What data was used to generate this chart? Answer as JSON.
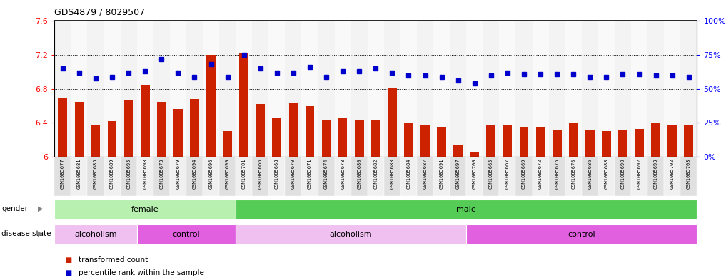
{
  "title": "GDS4879 / 8029507",
  "samples": [
    "GSM1085677",
    "GSM1085681",
    "GSM1085685",
    "GSM1085689",
    "GSM1085695",
    "GSM1085698",
    "GSM1085673",
    "GSM1085679",
    "GSM1085694",
    "GSM1085696",
    "GSM1085699",
    "GSM1085701",
    "GSM1085666",
    "GSM1085668",
    "GSM1085670",
    "GSM1085671",
    "GSM1085674",
    "GSM1085678",
    "GSM1085680",
    "GSM1085682",
    "GSM1085683",
    "GSM1085684",
    "GSM1085687",
    "GSM1085691",
    "GSM1085697",
    "GSM1085700",
    "GSM1085665",
    "GSM1085667",
    "GSM1085669",
    "GSM1085672",
    "GSM1085675",
    "GSM1085676",
    "GSM1085686",
    "GSM1085688",
    "GSM1085690",
    "GSM1085692",
    "GSM1085693",
    "GSM1085702",
    "GSM1085703"
  ],
  "bar_values": [
    6.7,
    6.65,
    6.38,
    6.42,
    6.67,
    6.85,
    6.65,
    6.56,
    6.68,
    7.2,
    6.3,
    7.22,
    6.62,
    6.45,
    6.63,
    6.6,
    6.43,
    6.45,
    6.43,
    6.44,
    6.81,
    6.4,
    6.38,
    6.35,
    6.14,
    6.05,
    6.37,
    6.38,
    6.35,
    6.35,
    6.32,
    6.4,
    6.32,
    6.3,
    6.32,
    6.33,
    6.4,
    6.37,
    6.37
  ],
  "dot_pct": [
    65,
    62,
    58,
    59,
    62,
    63,
    72,
    62,
    59,
    68,
    59,
    75,
    65,
    62,
    62,
    66,
    59,
    63,
    63,
    65,
    62,
    60,
    60,
    59,
    56,
    54,
    60,
    62,
    61,
    61,
    61,
    61,
    59,
    59,
    61,
    61,
    60,
    60,
    59
  ],
  "ylim_left": [
    6.0,
    7.6
  ],
  "yticks_left": [
    6.0,
    6.4,
    6.8,
    7.2,
    7.6
  ],
  "ytick_labels_left": [
    "6",
    "6.4",
    "6.8",
    "7.2",
    "7.6"
  ],
  "ylim_right": [
    0,
    100
  ],
  "yticks_right": [
    0,
    25,
    50,
    75,
    100
  ],
  "ytick_labels_right": [
    "0%",
    "25%",
    "50%",
    "75%",
    "100%"
  ],
  "bar_color": "#cc2200",
  "dot_color": "#0000cc",
  "gender_regions": [
    {
      "label": "female",
      "start": 0,
      "end": 11,
      "color": "#b8f0b0"
    },
    {
      "label": "male",
      "start": 11,
      "end": 39,
      "color": "#55cc55"
    }
  ],
  "disease_regions": [
    {
      "label": "alcoholism",
      "start": 0,
      "end": 5,
      "color": "#f0c0f0"
    },
    {
      "label": "control",
      "start": 5,
      "end": 11,
      "color": "#e060e0"
    },
    {
      "label": "alcoholism",
      "start": 11,
      "end": 25,
      "color": "#f0c0f0"
    },
    {
      "label": "control",
      "start": 25,
      "end": 39,
      "color": "#e060e0"
    }
  ]
}
